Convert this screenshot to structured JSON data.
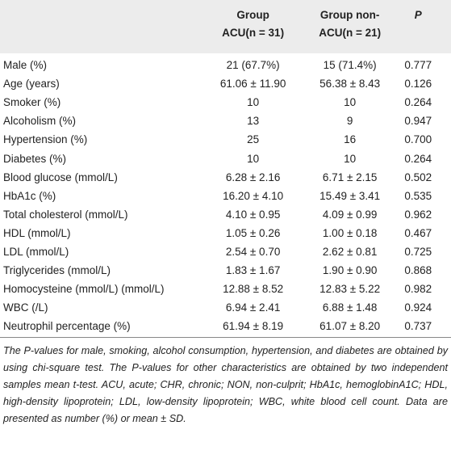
{
  "table": {
    "header": [
      [],
      [
        "Group",
        "ACU(n = 31)"
      ],
      [
        "Group non-",
        "ACU(n = 21)"
      ],
      [
        "P"
      ]
    ],
    "rows": [
      [
        "Male (%)",
        "21 (67.7%)",
        "15 (71.4%)",
        "0.777"
      ],
      [
        "Age (years)",
        "61.06 ± 11.90",
        "56.38 ± 8.43",
        "0.126"
      ],
      [
        "Smoker (%)",
        "10",
        "10",
        "0.264"
      ],
      [
        "Alcoholism (%)",
        "13",
        "9",
        "0.947"
      ],
      [
        "Hypertension (%)",
        "25",
        "16",
        "0.700"
      ],
      [
        "Diabetes (%)",
        "10",
        "10",
        "0.264"
      ],
      [
        "Blood glucose (mmol/L)",
        "6.28 ± 2.16",
        "6.71 ± 2.15",
        "0.502"
      ],
      [
        "HbA1c (%)",
        "16.20 ± 4.10",
        "15.49 ± 3.41",
        "0.535"
      ],
      [
        "Total cholesterol (mmol/L)",
        "4.10 ± 0.95",
        "4.09 ± 0.99",
        "0.962"
      ],
      [
        "HDL (mmol/L)",
        "1.05 ± 0.26",
        "1.00 ± 0.18",
        "0.467"
      ],
      [
        "LDL (mmol/L)",
        "2.54 ± 0.70",
        "2.62 ± 0.81",
        "0.725"
      ],
      [
        "Triglycerides (mmol/L)",
        "1.83 ± 1.67",
        "1.90 ± 0.90",
        "0.868"
      ],
      [
        "Homocysteine (mmol/L) (mmol/L)",
        "12.88 ± 8.52",
        "12.83 ± 5.22",
        "0.982"
      ],
      [
        "WBC (/L)",
        "6.94 ± 2.41",
        "6.88 ± 1.48",
        "0.924"
      ],
      [
        "Neutrophil percentage (%)",
        "61.94 ± 8.19",
        "61.07 ± 8.20",
        "0.737"
      ]
    ]
  },
  "footnote": "The P-values for male, smoking, alcohol consumption, hypertension, and diabetes are obtained by using chi-square test. The P-values for other characteristics are obtained by two independent samples mean t-test. ACU, acute; CHR, chronic; NON, non-culprit; HbA1c, hemoglobinA1C; HDL, high-density lipoprotein; LDL, low-density lipoprotein; WBC, white blood cell count. Data are presented as number (%) or mean ± SD."
}
